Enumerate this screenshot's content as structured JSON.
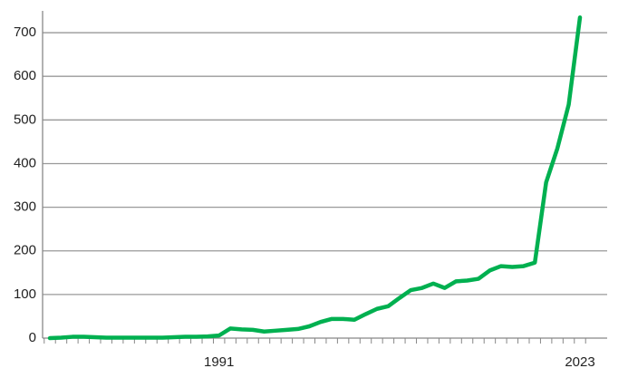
{
  "chart_data": {
    "type": "line",
    "categories": [
      null,
      null,
      null,
      null,
      null,
      null,
      null,
      null,
      null,
      null,
      null,
      null,
      null,
      null,
      null,
      "1991",
      null,
      null,
      null,
      null,
      null,
      null,
      null,
      null,
      null,
      null,
      null,
      null,
      null,
      null,
      null,
      null,
      null,
      null,
      null,
      null,
      null,
      null,
      null,
      null,
      null,
      null,
      null,
      null,
      null,
      null,
      null,
      "2023"
    ],
    "series": [
      {
        "name": null,
        "color": "#00b050",
        "values": [
          0,
          1,
          3,
          3,
          2,
          1,
          1,
          1,
          1,
          1,
          1,
          2,
          3,
          3,
          4,
          6,
          22,
          20,
          19,
          15,
          17,
          19,
          21,
          27,
          37,
          44,
          44,
          42,
          55,
          67,
          73,
          92,
          110,
          115,
          125,
          115,
          130,
          132,
          136,
          155,
          165,
          163,
          165,
          173,
          357,
          435,
          535,
          735
        ]
      }
    ],
    "ylim": [
      0,
      750
    ],
    "yticks": [
      0,
      100,
      200,
      300,
      400,
      500,
      600,
      700
    ],
    "grid": true
  }
}
